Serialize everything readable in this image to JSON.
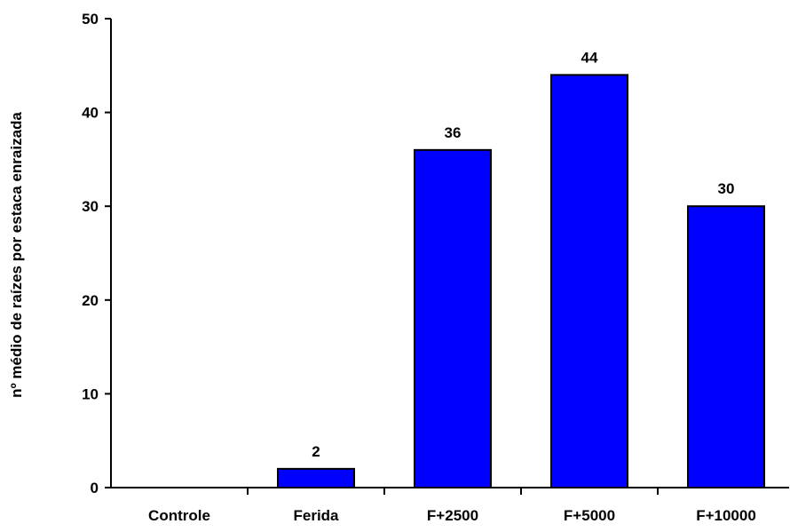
{
  "chart_data": {
    "type": "bar",
    "categories": [
      "Controle",
      "Ferida",
      "F+2500",
      "F+5000",
      "F+10000"
    ],
    "values": [
      0,
      2,
      36,
      44,
      30
    ],
    "data_labels": [
      "",
      "2",
      "36",
      "44",
      "30"
    ],
    "ylabel": "nº médio de raízes por estaca enraizada",
    "xlabel": "",
    "ylim": [
      0,
      50
    ],
    "yticks": [
      "0",
      "10",
      "20",
      "30",
      "40",
      "50"
    ],
    "bar_color": "#0000FF",
    "grid": false
  }
}
